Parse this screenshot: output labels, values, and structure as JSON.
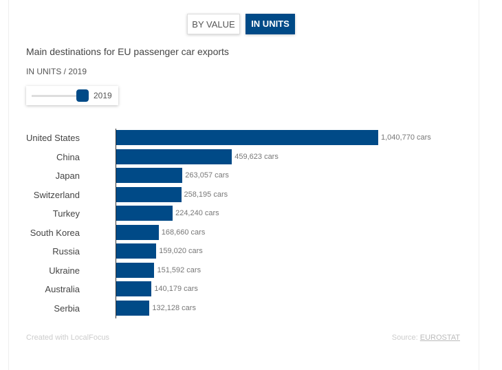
{
  "toggle": {
    "by_value": "BY VALUE",
    "in_units": "IN UNITS",
    "active": "IN UNITS"
  },
  "title": "Main destinations for EU passenger car exports",
  "subtitle": "IN UNITS / 2019",
  "slider": {
    "value": "2019"
  },
  "footer": {
    "credit": "Created with LocalFocus",
    "source_label": "Source:",
    "source_link": "EUROSTAT"
  },
  "colors": {
    "bar": "#004a87",
    "accent": "#004a87"
  },
  "chart_data": {
    "type": "bar",
    "orientation": "horizontal",
    "categories": [
      "United States",
      "China",
      "Japan",
      "Switzerland",
      "Turkey",
      "South Korea",
      "Russia",
      "Ukraine",
      "Australia",
      "Serbia"
    ],
    "values": [
      1040770,
      459623,
      263057,
      258195,
      224240,
      168660,
      159020,
      151592,
      140179,
      132128
    ],
    "labels": [
      "1,040,770 cars",
      "459,623 cars",
      "263,057 cars",
      "258,195 cars",
      "224,240 cars",
      "168,660 cars",
      "159,020 cars",
      "151,592 cars",
      "140,179 cars",
      "132,128 cars"
    ],
    "title": "Main destinations for EU passenger car exports",
    "unit": "cars"
  }
}
